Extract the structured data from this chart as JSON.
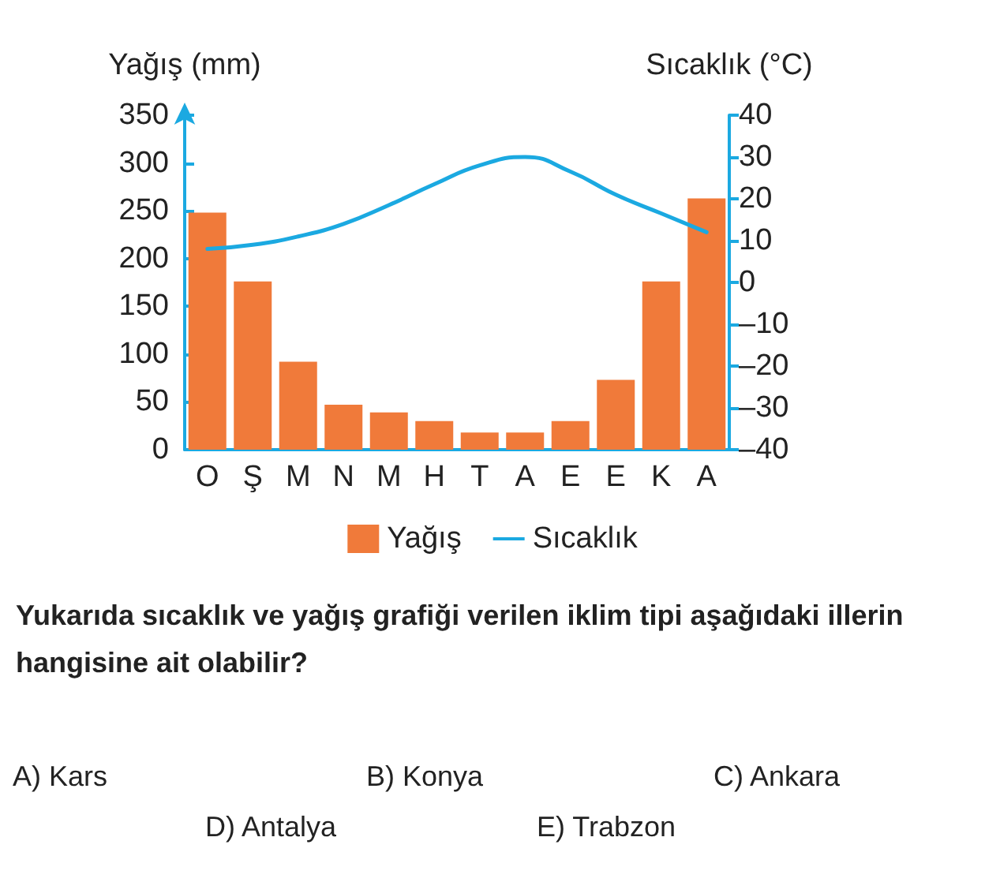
{
  "chart_data": {
    "type": "bar",
    "categories": [
      "O",
      "Ş",
      "M",
      "N",
      "M",
      "H",
      "T",
      "A",
      "E",
      "E",
      "K",
      "A"
    ],
    "ylabel": "Yağış (mm)",
    "y2label": "Sıcaklık (°C)",
    "series": [
      {
        "name": "Yağış",
        "color": "#f07a3a",
        "values": [
          248,
          176,
          92,
          47,
          39,
          30,
          18,
          18,
          30,
          73,
          176,
          263
        ]
      },
      {
        "name": "Sıcaklık",
        "type": "line",
        "axis": "y2",
        "color": "#1ba9e1",
        "values": [
          8,
          9,
          11,
          14,
          18.5,
          23.5,
          28,
          30,
          26.5,
          21,
          16.5,
          12
        ]
      }
    ],
    "ylim": [
      0,
      350
    ],
    "yticks": [
      0,
      50,
      100,
      150,
      200,
      250,
      300,
      350
    ],
    "y2lim": [
      -40,
      40
    ],
    "y2ticks": [
      {
        "value": -40,
        "label": "–40"
      },
      {
        "value": -30,
        "label": "–30"
      },
      {
        "value": -20,
        "label": "–20"
      },
      {
        "value": -10,
        "label": "–10"
      },
      0,
      10,
      20,
      30,
      40
    ],
    "grid": false,
    "legend": "bottom",
    "marker": "none",
    "line_style": "solid",
    "annotations": [
      "Yukarıda sıcaklık ve yağış grafiği verilen iklim tipi aşağıdaki illerin hangisine ait olabilir?",
      "A) Kars",
      "B) Konya",
      "C) Ankara",
      "D) Antalya",
      "E) Trabzon"
    ]
  }
}
